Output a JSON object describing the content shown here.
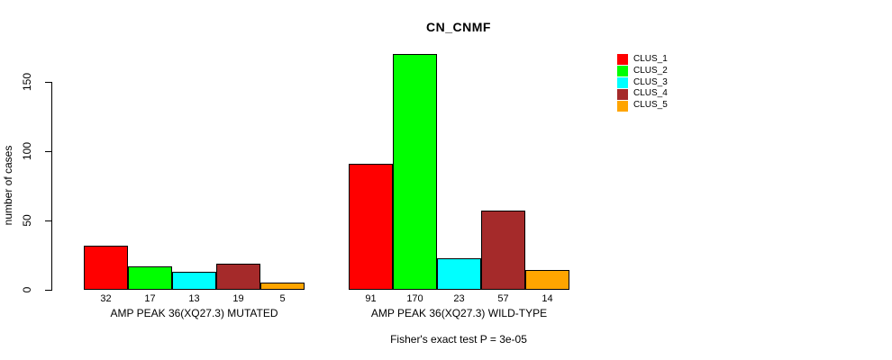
{
  "chart_data": {
    "type": "bar",
    "title": "CN_CNMF",
    "ylabel": "number of cases",
    "xlabel": "",
    "ylim": [
      0,
      170
    ],
    "yticks": [
      0,
      50,
      100,
      150
    ],
    "grid": false,
    "legend_position": "top-right",
    "bar_value_labels_shown": true,
    "categories": [
      "AMP PEAK 36(XQ27.3) MUTATED",
      "AMP PEAK 36(XQ27.3) WILD-TYPE"
    ],
    "series": [
      {
        "name": "CLUS_1",
        "color": "#FF0000",
        "values": [
          32,
          91
        ]
      },
      {
        "name": "CLUS_2",
        "color": "#00FF00",
        "values": [
          17,
          170
        ]
      },
      {
        "name": "CLUS_3",
        "color": "#00FFFF",
        "values": [
          13,
          23
        ]
      },
      {
        "name": "CLUS_4",
        "color": "#A52A2A",
        "values": [
          19,
          57
        ]
      },
      {
        "name": "CLUS_5",
        "color": "#FFA500",
        "values": [
          5,
          14
        ]
      }
    ],
    "annotation": "Fisher's exact test P = 3e-05"
  }
}
